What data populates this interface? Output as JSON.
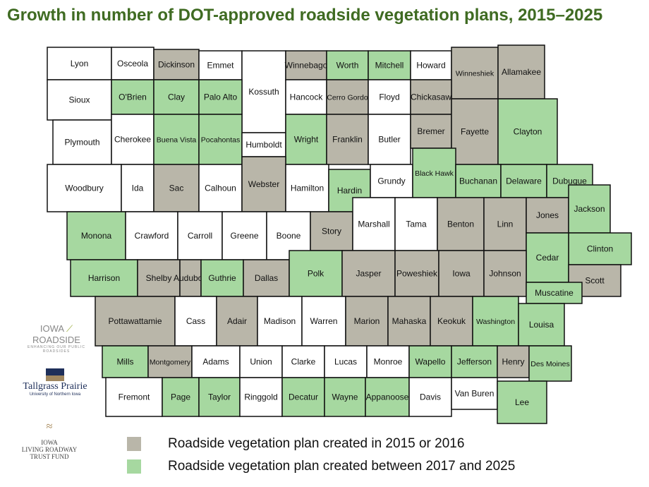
{
  "title": "Growth in number of DOT-approved roadside vegetation plans, 2015–2025",
  "colors": {
    "gray": "#b9b6a9",
    "green": "#a6d8a0",
    "none": "#ffffff",
    "border": "#111111",
    "title": "#3f6b22"
  },
  "legend": [
    {
      "key": "gray",
      "label": "Roadside vegetation plan created in 2015 or 2016"
    },
    {
      "key": "green",
      "label": "Roadside vegetation plan created between 2017 and 2025"
    }
  ],
  "logos": {
    "roadside": "IOWA ROADSIDE MANAGEMENT — ENHANCING OUR PUBLIC ROADSIDES",
    "tallgrass": "Tallgrass Prairie CENTER University of Northern Iowa",
    "trust": "IOWA LIVING ROADWAY TRUST FUND"
  },
  "counties": [
    {
      "name": "Lyon",
      "plan": "none"
    },
    {
      "name": "Osceola",
      "plan": "none"
    },
    {
      "name": "Dickinson",
      "plan": "gray"
    },
    {
      "name": "Emmet",
      "plan": "none"
    },
    {
      "name": "Kossuth",
      "plan": "none"
    },
    {
      "name": "Winnebago",
      "plan": "gray"
    },
    {
      "name": "Worth",
      "plan": "green"
    },
    {
      "name": "Mitchell",
      "plan": "green"
    },
    {
      "name": "Howard",
      "plan": "none"
    },
    {
      "name": "Winneshiek",
      "plan": "gray"
    },
    {
      "name": "Allamakee",
      "plan": "gray"
    },
    {
      "name": "Sioux",
      "plan": "none"
    },
    {
      "name": "O'Brien",
      "plan": "green"
    },
    {
      "name": "Clay",
      "plan": "green"
    },
    {
      "name": "Palo Alto",
      "plan": "green"
    },
    {
      "name": "Hancock",
      "plan": "none"
    },
    {
      "name": "Cerro Gordo",
      "plan": "gray"
    },
    {
      "name": "Floyd",
      "plan": "none"
    },
    {
      "name": "Chickasaw",
      "plan": "gray"
    },
    {
      "name": "Plymouth",
      "plan": "none"
    },
    {
      "name": "Cherokee",
      "plan": "none"
    },
    {
      "name": "Buena Vista",
      "plan": "green"
    },
    {
      "name": "Pocahontas",
      "plan": "green"
    },
    {
      "name": "Humboldt",
      "plan": "none"
    },
    {
      "name": "Wright",
      "plan": "green"
    },
    {
      "name": "Franklin",
      "plan": "gray"
    },
    {
      "name": "Butler",
      "plan": "none"
    },
    {
      "name": "Bremer",
      "plan": "gray"
    },
    {
      "name": "Fayette",
      "plan": "gray"
    },
    {
      "name": "Clayton",
      "plan": "green"
    },
    {
      "name": "Woodbury",
      "plan": "none"
    },
    {
      "name": "Ida",
      "plan": "none"
    },
    {
      "name": "Sac",
      "plan": "gray"
    },
    {
      "name": "Calhoun",
      "plan": "none"
    },
    {
      "name": "Webster",
      "plan": "gray"
    },
    {
      "name": "Hamilton",
      "plan": "none"
    },
    {
      "name": "Hardin",
      "plan": "green"
    },
    {
      "name": "Grundy",
      "plan": "none"
    },
    {
      "name": "Black Hawk",
      "plan": "green"
    },
    {
      "name": "Buchanan",
      "plan": "green"
    },
    {
      "name": "Delaware",
      "plan": "green"
    },
    {
      "name": "Dubuque",
      "plan": "green"
    },
    {
      "name": "Monona",
      "plan": "green"
    },
    {
      "name": "Crawford",
      "plan": "none"
    },
    {
      "name": "Carroll",
      "plan": "none"
    },
    {
      "name": "Greene",
      "plan": "none"
    },
    {
      "name": "Boone",
      "plan": "none"
    },
    {
      "name": "Story",
      "plan": "gray"
    },
    {
      "name": "Marshall",
      "plan": "none"
    },
    {
      "name": "Tama",
      "plan": "none"
    },
    {
      "name": "Benton",
      "plan": "gray"
    },
    {
      "name": "Linn",
      "plan": "gray"
    },
    {
      "name": "Jones",
      "plan": "gray"
    },
    {
      "name": "Jackson",
      "plan": "green"
    },
    {
      "name": "Clinton",
      "plan": "green"
    },
    {
      "name": "Cedar",
      "plan": "green"
    },
    {
      "name": "Scott",
      "plan": "gray"
    },
    {
      "name": "Harrison",
      "plan": "green"
    },
    {
      "name": "Shelby",
      "plan": "gray"
    },
    {
      "name": "Audubon",
      "plan": "gray"
    },
    {
      "name": "Guthrie",
      "plan": "green"
    },
    {
      "name": "Dallas",
      "plan": "gray"
    },
    {
      "name": "Polk",
      "plan": "green"
    },
    {
      "name": "Jasper",
      "plan": "gray"
    },
    {
      "name": "Poweshiek",
      "plan": "gray"
    },
    {
      "name": "Iowa",
      "plan": "gray"
    },
    {
      "name": "Johnson",
      "plan": "gray"
    },
    {
      "name": "Muscatine",
      "plan": "green"
    },
    {
      "name": "Pottawattamie",
      "plan": "gray"
    },
    {
      "name": "Cass",
      "plan": "none"
    },
    {
      "name": "Adair",
      "plan": "gray"
    },
    {
      "name": "Madison",
      "plan": "none"
    },
    {
      "name": "Warren",
      "plan": "none"
    },
    {
      "name": "Marion",
      "plan": "gray"
    },
    {
      "name": "Mahaska",
      "plan": "gray"
    },
    {
      "name": "Keokuk",
      "plan": "gray"
    },
    {
      "name": "Washington",
      "plan": "green"
    },
    {
      "name": "Louisa",
      "plan": "green"
    },
    {
      "name": "Mills",
      "plan": "green"
    },
    {
      "name": "Montgomery",
      "plan": "gray"
    },
    {
      "name": "Adams",
      "plan": "none"
    },
    {
      "name": "Union",
      "plan": "none"
    },
    {
      "name": "Clarke",
      "plan": "none"
    },
    {
      "name": "Lucas",
      "plan": "none"
    },
    {
      "name": "Monroe",
      "plan": "none"
    },
    {
      "name": "Wapello",
      "plan": "green"
    },
    {
      "name": "Jefferson",
      "plan": "green"
    },
    {
      "name": "Henry",
      "plan": "gray"
    },
    {
      "name": "Des Moines",
      "plan": "green"
    },
    {
      "name": "Fremont",
      "plan": "none"
    },
    {
      "name": "Page",
      "plan": "green"
    },
    {
      "name": "Taylor",
      "plan": "green"
    },
    {
      "name": "Ringgold",
      "plan": "none"
    },
    {
      "name": "Decatur",
      "plan": "green"
    },
    {
      "name": "Wayne",
      "plan": "green"
    },
    {
      "name": "Appanoose",
      "plan": "green"
    },
    {
      "name": "Davis",
      "plan": "none"
    },
    {
      "name": "Van Buren",
      "plan": "none"
    },
    {
      "name": "Lee",
      "plan": "green"
    }
  ]
}
